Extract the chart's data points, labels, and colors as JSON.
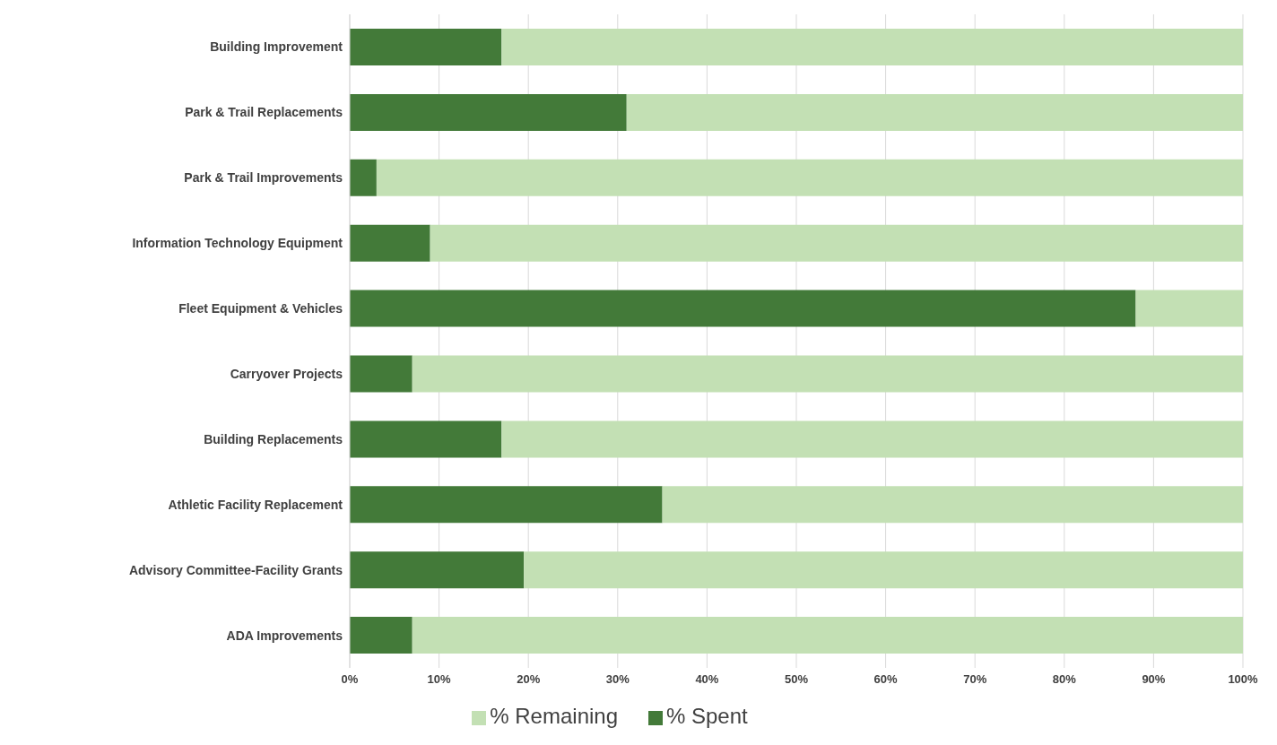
{
  "chart_data": {
    "type": "bar",
    "orientation": "horizontal",
    "stacked": true,
    "categories": [
      "Building Improvement",
      "Park & Trail Replacements",
      "Park & Trail Improvements",
      "Information Technology Equipment",
      "Fleet Equipment & Vehicles",
      "Carryover Projects",
      "Building Replacements",
      "Athletic Facility Replacement",
      "Advisory Committee-Facility Grants",
      "ADA Improvements"
    ],
    "series": [
      {
        "name": "% Spent",
        "color": "#437a39",
        "values": [
          17,
          31,
          3,
          9,
          88,
          7,
          17,
          35,
          19.5,
          7
        ]
      },
      {
        "name": "% Remaining",
        "color": "#c3e0b4",
        "values": [
          83,
          69,
          97,
          91,
          12,
          93,
          83,
          65,
          80.5,
          93
        ]
      }
    ],
    "xlim": [
      0,
      100
    ],
    "xticks": [
      {
        "value": 0,
        "label": "0%"
      },
      {
        "value": 10,
        "label": "10%"
      },
      {
        "value": 20,
        "label": "20%"
      },
      {
        "value": 30,
        "label": "30%"
      },
      {
        "value": 40,
        "label": "40%"
      },
      {
        "value": 50,
        "label": "50%"
      },
      {
        "value": 60,
        "label": "60%"
      },
      {
        "value": 70,
        "label": "70%"
      },
      {
        "value": 80,
        "label": "80%"
      },
      {
        "value": 90,
        "label": "90%"
      },
      {
        "value": 100,
        "label": "100%"
      }
    ],
    "grid": "x",
    "legend": "bottom"
  }
}
